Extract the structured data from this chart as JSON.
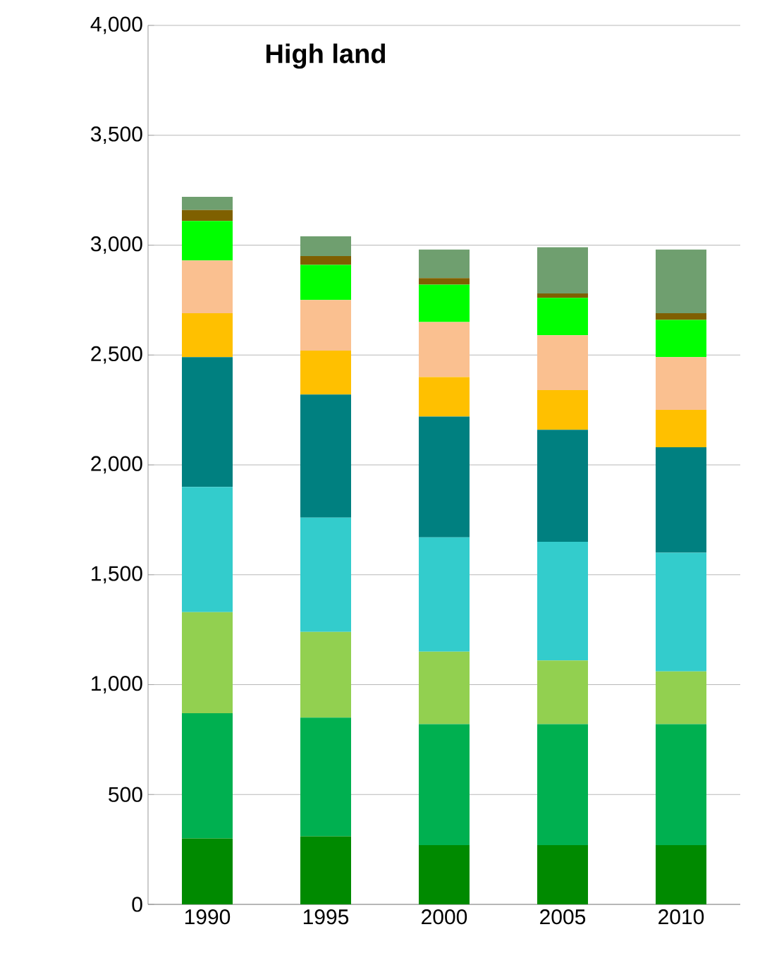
{
  "chart_data": {
    "type": "bar",
    "stacked": true,
    "title": "High land",
    "categories": [
      "1990",
      "1995",
      "2000",
      "2005",
      "2010"
    ],
    "series": [
      {
        "color": "#008a00",
        "values": [
          300,
          310,
          270,
          270,
          270
        ]
      },
      {
        "color": "#00b050",
        "values": [
          570,
          540,
          550,
          550,
          550
        ]
      },
      {
        "color": "#92d050",
        "values": [
          460,
          390,
          330,
          290,
          240
        ]
      },
      {
        "color": "#33cccc",
        "values": [
          570,
          520,
          520,
          540,
          540
        ]
      },
      {
        "color": "#008080",
        "values": [
          590,
          560,
          550,
          510,
          480
        ]
      },
      {
        "color": "#ffc000",
        "values": [
          200,
          200,
          180,
          180,
          170
        ]
      },
      {
        "color": "#fac090",
        "values": [
          240,
          230,
          250,
          250,
          240
        ]
      },
      {
        "color": "#00ff00",
        "values": [
          180,
          160,
          170,
          170,
          170
        ]
      },
      {
        "color": "#7f6000",
        "values": [
          50,
          40,
          30,
          20,
          30
        ]
      },
      {
        "color": "#6f9f6f",
        "values": [
          60,
          90,
          130,
          210,
          290
        ]
      }
    ],
    "ylim": [
      0,
      4000
    ],
    "yticks": [
      0,
      500,
      {
        "value": 1000,
        "label": "1,000"
      },
      {
        "value": 1500,
        "label": "1,500"
      },
      {
        "value": 2000,
        "label": "2,000"
      },
      {
        "value": 2500,
        "label": "2,500"
      },
      {
        "value": 3000,
        "label": "3,000"
      },
      {
        "value": 3500,
        "label": "3,500"
      },
      {
        "value": 4000,
        "label": "4,000"
      }
    ],
    "grid": "y"
  }
}
